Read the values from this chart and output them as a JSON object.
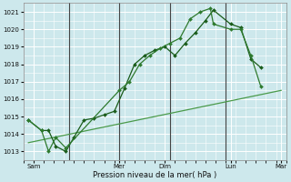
{
  "xlabel": "Pression niveau de la mer( hPa )",
  "bg_color": "#cde8ec",
  "grid_color": "#ffffff",
  "line_color_dark": "#1a5c1a",
  "line_color_mid": "#2e7a2e",
  "line_color_light": "#4a9a4a",
  "ylim": [
    1012.5,
    1021.5
  ],
  "yticks": [
    1013,
    1014,
    1015,
    1016,
    1017,
    1018,
    1019,
    1020,
    1021
  ],
  "xlim": [
    0,
    26
  ],
  "vline_x": [
    4.5,
    9.5,
    14.5,
    20.0
  ],
  "xtick_positions": [
    1.0,
    9.5,
    14.0,
    20.5,
    25.5
  ],
  "xtick_labels": [
    "Sam",
    "Mer",
    "Dim",
    "Lun",
    "Mar"
  ],
  "series1_x": [
    0.5,
    1.8,
    2.5,
    3.2,
    4.2,
    5.0,
    6.0,
    7.0,
    8.0,
    9.0,
    10.0,
    11.0,
    12.0,
    13.0,
    14.0,
    15.0,
    16.0,
    17.0,
    18.0,
    18.8,
    20.5,
    21.5,
    22.5,
    23.5
  ],
  "series1_y": [
    1014.8,
    1014.2,
    1014.2,
    1013.3,
    1013.0,
    1013.8,
    1014.8,
    1014.9,
    1015.1,
    1015.3,
    1016.6,
    1018.0,
    1018.5,
    1018.8,
    1019.0,
    1018.5,
    1019.2,
    1019.8,
    1020.5,
    1021.1,
    1020.3,
    1020.1,
    1018.3,
    1017.8
  ],
  "series2_x": [
    0.5,
    1.8,
    2.5,
    3.2,
    4.2,
    9.5,
    10.5,
    11.5,
    12.5,
    13.5,
    14.5,
    15.5,
    16.5,
    17.5,
    18.5,
    18.8,
    20.5,
    21.5,
    22.5,
    23.5
  ],
  "series2_y": [
    1014.8,
    1014.2,
    1013.0,
    1013.8,
    1013.2,
    1016.5,
    1017.0,
    1018.0,
    1018.5,
    1018.9,
    1019.2,
    1019.5,
    1020.6,
    1021.0,
    1021.2,
    1020.3,
    1020.0,
    1020.0,
    1018.5,
    1016.7
  ],
  "trend_x": [
    0.5,
    25.5
  ],
  "trend_y": [
    1013.5,
    1016.5
  ]
}
